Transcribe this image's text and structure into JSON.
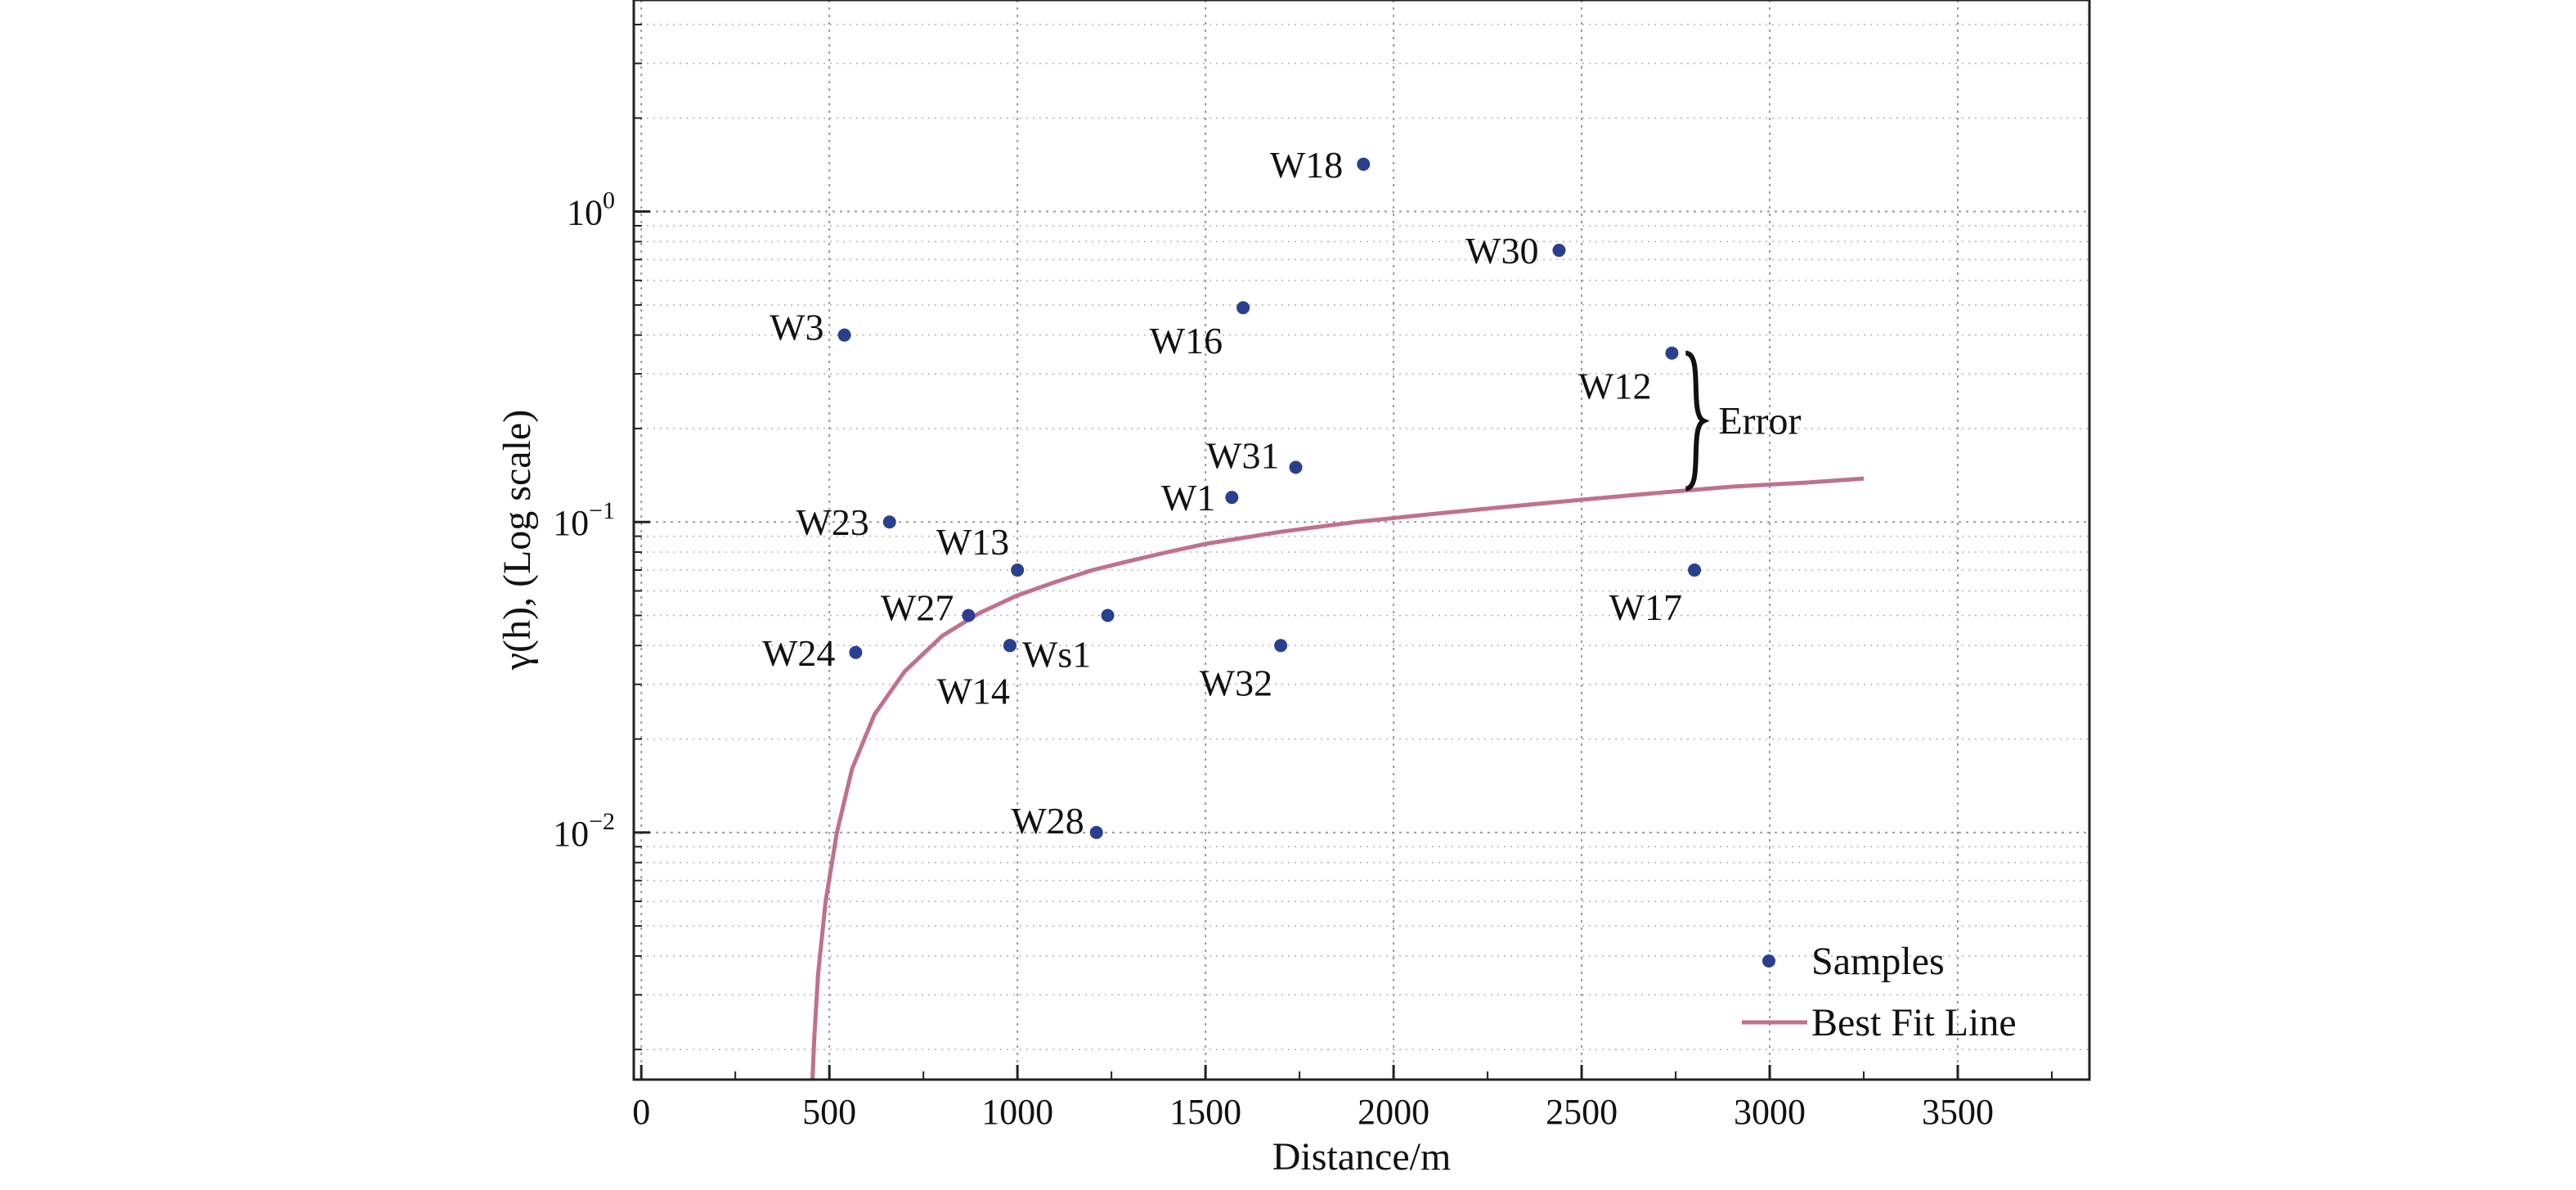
{
  "chart_data": {
    "type": "scatter",
    "xlabel": "Distance/m",
    "ylabel": "γ(h), (Log scale)",
    "xlim": [
      -20,
      3850
    ],
    "ylim": [
      0.0016,
      4.8
    ],
    "yscale": "log",
    "grid": true,
    "legend_position": "bottom-right",
    "x_ticks": [
      0,
      500,
      1000,
      1500,
      2000,
      2500,
      3000,
      3500
    ],
    "x_tick_labels": [
      "0",
      "500",
      "1000",
      "1500",
      "2000",
      "2500",
      "3000",
      "3500"
    ],
    "y_ticks": [
      1,
      0.1,
      0.01
    ],
    "y_tick_labels": [
      {
        "base": "10",
        "exp": "0"
      },
      {
        "base": "10",
        "exp": "−1"
      },
      {
        "base": "10",
        "exp": "−2"
      }
    ],
    "series": [
      {
        "name": "Samples",
        "type": "scatter",
        "color": "#2b3f8f",
        "points": [
          {
            "label": "W18",
            "x": 1920,
            "y": 1.42
          },
          {
            "label": "W30",
            "x": 2440,
            "y": 0.75
          },
          {
            "label": "W16",
            "x": 1600,
            "y": 0.49
          },
          {
            "label": "W3",
            "x": 540,
            "y": 0.4
          },
          {
            "label": "W12",
            "x": 2740,
            "y": 0.35
          },
          {
            "label": "W31",
            "x": 1740,
            "y": 0.15
          },
          {
            "label": "W1",
            "x": 1570,
            "y": 0.12
          },
          {
            "label": "W23",
            "x": 660,
            "y": 0.1
          },
          {
            "label": "W13",
            "x": 1000,
            "y": 0.07
          },
          {
            "label": "W17",
            "x": 2800,
            "y": 0.07
          },
          {
            "label": "W27",
            "x": 870,
            "y": 0.05
          },
          {
            "label": "",
            "x": 1240,
            "y": 0.05
          },
          {
            "label": "Ws1",
            "x": 980,
            "y": 0.04
          },
          {
            "label": "W32",
            "x": 1700,
            "y": 0.04
          },
          {
            "label": "W24",
            "x": 570,
            "y": 0.038
          },
          {
            "label": "W14",
            "x": 980,
            "y": 0.04
          },
          {
            "label": "W28",
            "x": 1210,
            "y": 0.01
          }
        ]
      },
      {
        "name": "Best Fit Line",
        "type": "line",
        "color": "#c0708e",
        "points": [
          {
            "x": 455,
            "y": 0.0016
          },
          {
            "x": 460,
            "y": 0.0022
          },
          {
            "x": 470,
            "y": 0.0035
          },
          {
            "x": 490,
            "y": 0.006
          },
          {
            "x": 520,
            "y": 0.01
          },
          {
            "x": 560,
            "y": 0.016
          },
          {
            "x": 620,
            "y": 0.024
          },
          {
            "x": 700,
            "y": 0.033
          },
          {
            "x": 800,
            "y": 0.043
          },
          {
            "x": 900,
            "y": 0.051
          },
          {
            "x": 1000,
            "y": 0.058
          },
          {
            "x": 1100,
            "y": 0.064
          },
          {
            "x": 1200,
            "y": 0.07
          },
          {
            "x": 1300,
            "y": 0.075
          },
          {
            "x": 1400,
            "y": 0.08
          },
          {
            "x": 1500,
            "y": 0.085
          },
          {
            "x": 1700,
            "y": 0.093
          },
          {
            "x": 1900,
            "y": 0.1
          },
          {
            "x": 2100,
            "y": 0.106
          },
          {
            "x": 2300,
            "y": 0.112
          },
          {
            "x": 2500,
            "y": 0.118
          },
          {
            "x": 2700,
            "y": 0.124
          },
          {
            "x": 2900,
            "y": 0.13
          },
          {
            "x": 3100,
            "y": 0.134
          },
          {
            "x": 3250,
            "y": 0.138
          }
        ]
      }
    ],
    "annotations": [
      {
        "text": "Error",
        "x": 2820,
        "y_top": 0.35,
        "y_bottom": 0.128
      }
    ]
  }
}
